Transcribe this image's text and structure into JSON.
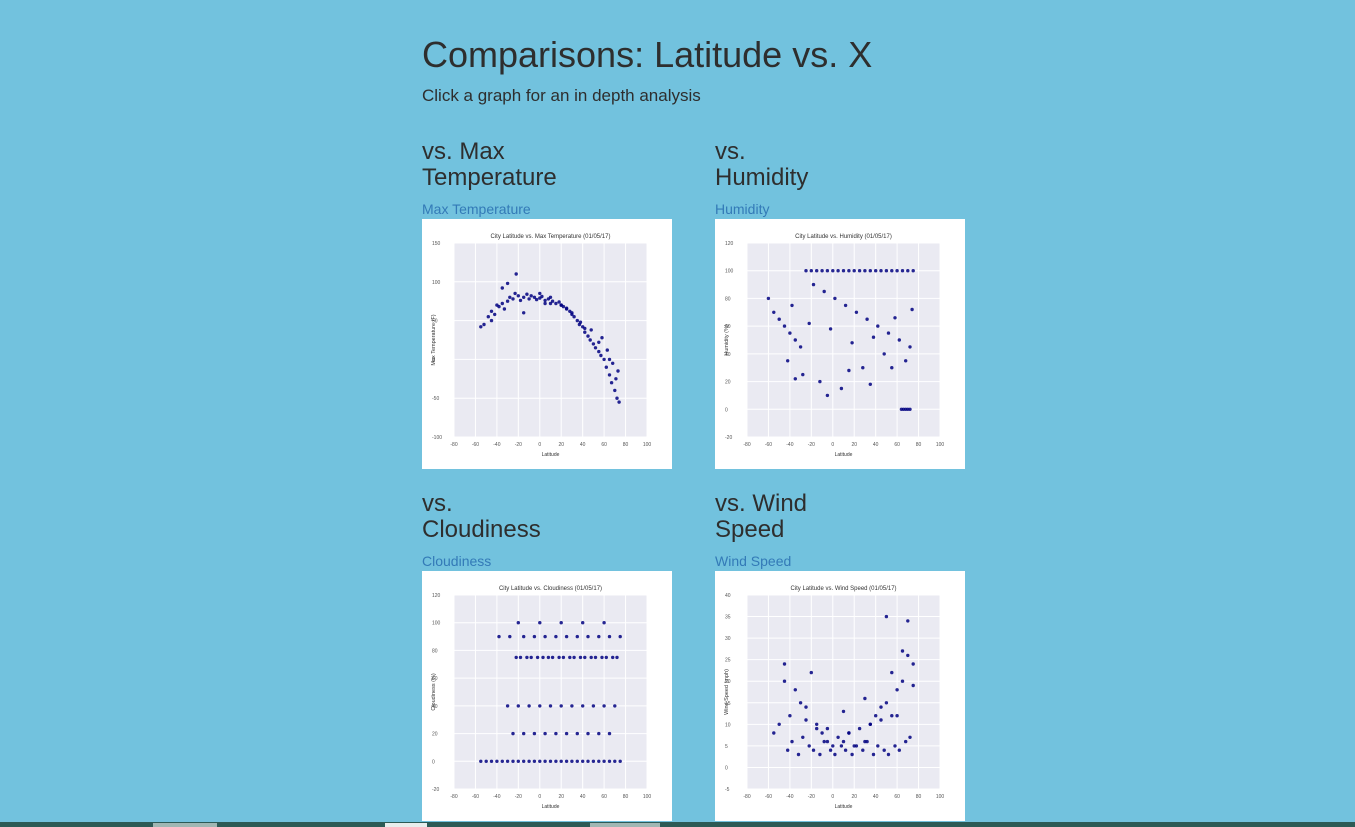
{
  "page": {
    "title": "Comparisons: Latitude vs. X",
    "subtitle": "Click a graph for an in depth analysis"
  },
  "cards": [
    {
      "heading_line1": "vs. Max",
      "heading_line2": "Temperature",
      "link_label": "Max Temperature"
    },
    {
      "heading_line1": "vs.",
      "heading_line2": "Humidity",
      "link_label": "Humidity"
    },
    {
      "heading_line1": "vs.",
      "heading_line2": "Cloudiness",
      "link_label": "Cloudiness"
    },
    {
      "heading_line1": "vs. Wind",
      "heading_line2": "Speed",
      "link_label": "Wind Speed"
    }
  ],
  "chart_data": [
    {
      "type": "scatter",
      "title": "City Latitude vs. Max Temperature (01/05/17)",
      "xlabel": "Latitude",
      "ylabel": "Max Temperature (F)",
      "xlim": [
        -80,
        100
      ],
      "ylim": [
        -100,
        150
      ],
      "xticks": [
        "-80",
        "-60",
        "-40",
        "-20",
        "0",
        "20",
        "40",
        "60",
        "80",
        "100"
      ],
      "yticks": [
        "150",
        "100",
        "50",
        "0",
        "-50",
        "-100"
      ],
      "grid": true,
      "point_color": "#000080",
      "x": [
        -55,
        -52,
        -48,
        -45,
        -42,
        -40,
        -38,
        -35,
        -33,
        -30,
        -28,
        -25,
        -23,
        -20,
        -18,
        -15,
        -12,
        -10,
        -8,
        -5,
        -3,
        0,
        2,
        5,
        8,
        10,
        12,
        15,
        18,
        20,
        22,
        25,
        28,
        30,
        32,
        35,
        37,
        40,
        42,
        45,
        47,
        50,
        52,
        55,
        57,
        60,
        62,
        65,
        67,
        70,
        72,
        74,
        -22,
        -30,
        -35,
        0,
        10,
        25,
        38,
        48,
        58,
        63,
        68,
        71,
        -45,
        -15,
        5,
        20,
        30,
        42,
        55,
        65,
        73
      ],
      "y": [
        42,
        45,
        55,
        62,
        58,
        70,
        68,
        72,
        65,
        75,
        80,
        78,
        85,
        82,
        76,
        80,
        84,
        78,
        82,
        80,
        77,
        79,
        81,
        76,
        78,
        80,
        75,
        72,
        74,
        70,
        68,
        65,
        62,
        60,
        55,
        50,
        45,
        42,
        35,
        30,
        25,
        20,
        15,
        10,
        5,
        0,
        -10,
        -20,
        -30,
        -40,
        -50,
        -55,
        110,
        98,
        92,
        85,
        72,
        66,
        48,
        38,
        28,
        12,
        -5,
        -25,
        50,
        60,
        72,
        70,
        58,
        40,
        22,
        0,
        -15
      ]
    },
    {
      "type": "scatter",
      "title": "City Latitude vs. Humidity (01/05/17)",
      "xlabel": "Latitude",
      "ylabel": "Humidity (%)",
      "xlim": [
        -80,
        100
      ],
      "ylim": [
        -20,
        120
      ],
      "xticks": [
        "-80",
        "-60",
        "-40",
        "-20",
        "0",
        "20",
        "40",
        "60",
        "80",
        "100"
      ],
      "yticks": [
        "120",
        "100",
        "80",
        "60",
        "40",
        "20",
        "0",
        "-20"
      ],
      "grid": true,
      "point_color": "#000080",
      "x": [
        -60,
        -55,
        -50,
        -45,
        -40,
        -35,
        -30,
        -25,
        -20,
        -15,
        -10,
        -5,
        0,
        5,
        10,
        15,
        20,
        25,
        30,
        35,
        40,
        45,
        50,
        55,
        60,
        65,
        70,
        75,
        -18,
        -8,
        2,
        12,
        22,
        32,
        42,
        52,
        62,
        72,
        -42,
        -28,
        -12,
        8,
        28,
        48,
        68,
        -35,
        -5,
        15,
        35,
        55,
        64,
        66,
        68,
        70,
        72,
        -38,
        -22,
        -2,
        18,
        38,
        58,
        74
      ],
      "y": [
        80,
        70,
        65,
        60,
        55,
        50,
        45,
        100,
        100,
        100,
        100,
        100,
        100,
        100,
        100,
        100,
        100,
        100,
        100,
        100,
        100,
        100,
        100,
        100,
        100,
        100,
        100,
        100,
        90,
        85,
        80,
        75,
        70,
        65,
        60,
        55,
        50,
        45,
        35,
        25,
        20,
        15,
        30,
        40,
        35,
        22,
        10,
        28,
        18,
        30,
        0,
        0,
        0,
        0,
        0,
        75,
        62,
        58,
        48,
        52,
        66,
        72
      ]
    },
    {
      "type": "scatter",
      "title": "City Latitude vs. Cloudiness (01/05/17)",
      "xlabel": "Latitude",
      "ylabel": "Cloudiness (%)",
      "xlim": [
        -80,
        100
      ],
      "ylim": [
        -20,
        120
      ],
      "xticks": [
        "-80",
        "-60",
        "-40",
        "-20",
        "0",
        "20",
        "40",
        "60",
        "80",
        "100"
      ],
      "yticks": [
        "120",
        "100",
        "80",
        "60",
        "40",
        "20",
        "0",
        "-20"
      ],
      "grid": true,
      "point_color": "#000080",
      "x": [
        -55,
        -50,
        -45,
        -40,
        -35,
        -30,
        -25,
        -20,
        -15,
        -10,
        -5,
        0,
        5,
        10,
        15,
        20,
        25,
        30,
        35,
        40,
        45,
        50,
        55,
        60,
        65,
        70,
        75,
        -22,
        -18,
        -12,
        -8,
        -2,
        3,
        8,
        12,
        18,
        22,
        28,
        32,
        38,
        42,
        48,
        52,
        58,
        62,
        68,
        72,
        -38,
        -28,
        -15,
        -5,
        5,
        15,
        25,
        35,
        45,
        55,
        65,
        75,
        -30,
        -20,
        -10,
        0,
        10,
        20,
        30,
        40,
        50,
        60,
        70,
        -25,
        -15,
        -5,
        5,
        15,
        25,
        35,
        45,
        55,
        65,
        -20,
        0,
        20,
        40,
        60
      ],
      "y": [
        0,
        0,
        0,
        0,
        0,
        0,
        0,
        0,
        0,
        0,
        0,
        0,
        0,
        0,
        0,
        0,
        0,
        0,
        0,
        0,
        0,
        0,
        0,
        0,
        0,
        0,
        0,
        75,
        75,
        75,
        75,
        75,
        75,
        75,
        75,
        75,
        75,
        75,
        75,
        75,
        75,
        75,
        75,
        75,
        75,
        75,
        75,
        90,
        90,
        90,
        90,
        90,
        90,
        90,
        90,
        90,
        90,
        90,
        90,
        40,
        40,
        40,
        40,
        40,
        40,
        40,
        40,
        40,
        40,
        40,
        20,
        20,
        20,
        20,
        20,
        20,
        20,
        20,
        20,
        20,
        100,
        100,
        100,
        100,
        100
      ]
    },
    {
      "type": "scatter",
      "title": "City Latitude vs. Wind Speed (01/05/17)",
      "xlabel": "Latitude",
      "ylabel": "Wind Speed (mph)",
      "xlim": [
        -80,
        100
      ],
      "ylim": [
        -5,
        40
      ],
      "xticks": [
        "-80",
        "-60",
        "-40",
        "-20",
        "0",
        "20",
        "40",
        "60",
        "80",
        "100"
      ],
      "yticks": [
        "40",
        "35",
        "30",
        "25",
        "20",
        "15",
        "10",
        "5",
        "0",
        "-5"
      ],
      "grid": true,
      "point_color": "#000080",
      "x": [
        -55,
        -50,
        -45,
        -40,
        -35,
        -30,
        -25,
        -20,
        -15,
        -10,
        -5,
        0,
        5,
        10,
        15,
        20,
        25,
        30,
        35,
        40,
        45,
        50,
        55,
        60,
        65,
        70,
        75,
        -42,
        -38,
        -32,
        -28,
        -22,
        -18,
        -12,
        -8,
        -2,
        2,
        8,
        12,
        18,
        22,
        28,
        32,
        38,
        42,
        48,
        52,
        58,
        62,
        68,
        72,
        -45,
        -25,
        -5,
        15,
        35,
        55,
        75,
        50,
        70,
        65,
        60,
        45,
        30,
        10,
        -15
      ],
      "y": [
        8,
        10,
        24,
        12,
        18,
        15,
        14,
        22,
        10,
        8,
        6,
        5,
        7,
        6,
        8,
        5,
        9,
        6,
        10,
        12,
        14,
        15,
        12,
        18,
        20,
        26,
        24,
        4,
        6,
        3,
        7,
        5,
        4,
        3,
        6,
        4,
        3,
        5,
        4,
        3,
        5,
        4,
        6,
        3,
        5,
        4,
        3,
        5,
        4,
        6,
        7,
        20,
        11,
        9,
        8,
        10,
        22,
        19,
        35,
        34,
        27,
        12,
        11,
        16,
        13,
        9
      ]
    }
  ]
}
